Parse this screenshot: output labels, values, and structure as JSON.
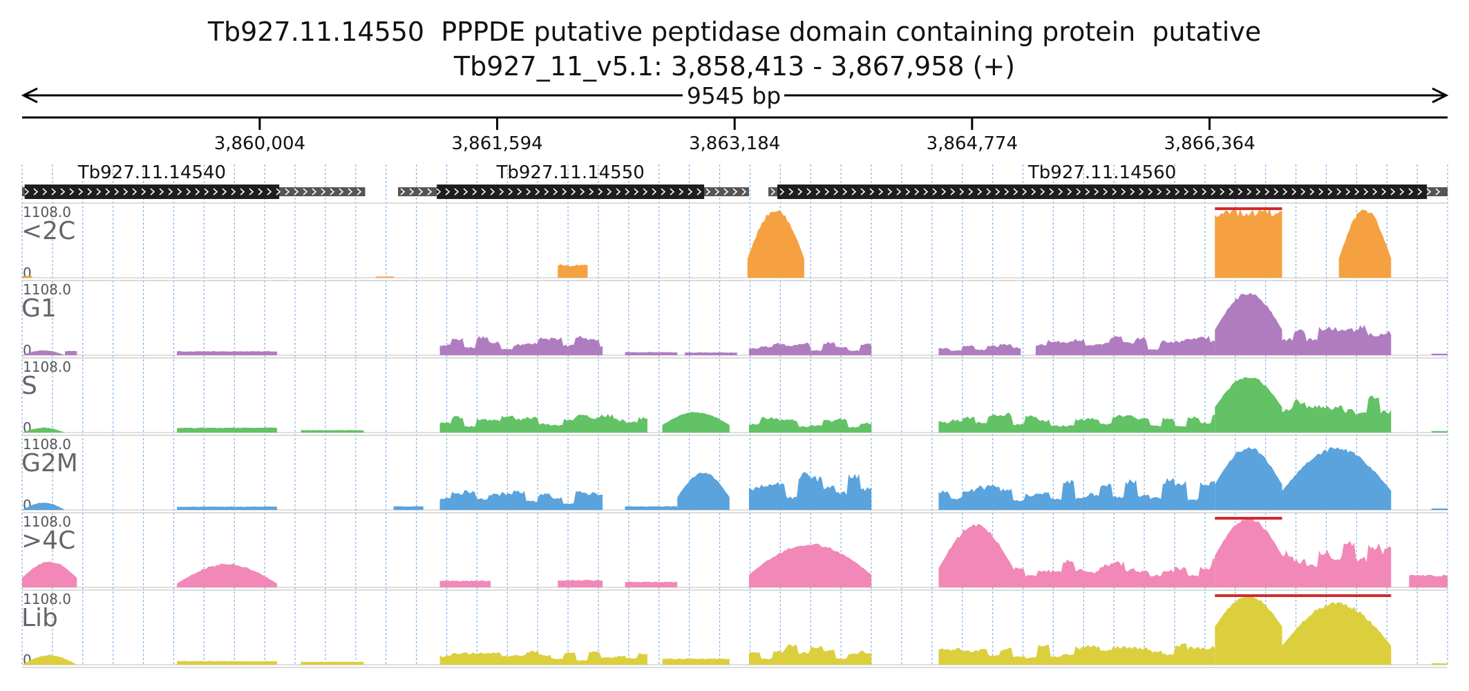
{
  "header": {
    "title": "Tb927.11.14550  PPPDE putative peptidase domain containing protein  putative",
    "location": "Tb927_11_v5.1: 3,858,413 - 3,867,958 (+)"
  },
  "span": {
    "label": "9545 bp",
    "start": 3858413,
    "end": 3867958
  },
  "ruler": {
    "ticks": [
      {
        "value": 3860004,
        "label": "3,860,004"
      },
      {
        "value": 3861594,
        "label": "3,861,594"
      },
      {
        "value": 3863184,
        "label": "3,863,184"
      },
      {
        "value": 3864774,
        "label": "3,864,774"
      },
      {
        "value": 3866364,
        "label": "3,866,364"
      }
    ]
  },
  "genes": [
    {
      "name": "Tb927.11.14540",
      "utr_start": 3858413,
      "cds_start": 3858430,
      "cds_end": 3860135,
      "utr_end": 3860710
    },
    {
      "name": "Tb927.11.14550",
      "utr_start": 3860930,
      "cds_start": 3861190,
      "cds_end": 3862980,
      "utr_end": 3863280
    },
    {
      "name": "Tb927.11.14560",
      "utr_start": 3863410,
      "cds_start": 3863470,
      "cds_end": 3867820,
      "utr_end": 3867958
    }
  ],
  "colors": {
    "<2C": "#f5a142",
    "G1": "#b07cc0",
    "S": "#62c265",
    "G2M": "#5aa3dd",
    ">4C": "#f188b8",
    "Lib": "#dccf3e",
    "clip": "#d42a2a",
    "gene": "#1e1e1e",
    "utr": "#555555",
    "grid": "#7fb2e5"
  },
  "tracks": [
    {
      "name": "<2C",
      "max_label": "1108.0",
      "min_label": "0",
      "max": 1108
    },
    {
      "name": "G1",
      "max_label": "1108.0",
      "min_label": "0",
      "max": 1108
    },
    {
      "name": "S",
      "max_label": "1108.0",
      "min_label": "0",
      "max": 1108
    },
    {
      "name": "G2M",
      "max_label": "1108.0",
      "min_label": "0",
      "max": 1108
    },
    {
      "name": ">4C",
      "max_label": "1108.0",
      "min_label": "0",
      "max": 1108
    },
    {
      "name": "Lib",
      "max_label": "1108.0",
      "min_label": "0",
      "max": 1108
    }
  ],
  "chart_data": {
    "type": "area",
    "x_unit": "bp",
    "y_range": [
      0,
      1108
    ],
    "series": [
      {
        "name": "<2C",
        "segments": [
          {
            "start": 3858413,
            "end": 3858480,
            "shape": "flat",
            "level": 30
          },
          {
            "start": 3860780,
            "end": 3860900,
            "shape": "flat",
            "level": 20
          },
          {
            "start": 3862000,
            "end": 3862200,
            "shape": "flat",
            "level": 210
          },
          {
            "start": 3863270,
            "end": 3863650,
            "shape": "hump",
            "level": 1108,
            "base": 300
          },
          {
            "start": 3866400,
            "end": 3866850,
            "shape": "flat",
            "level": 1108,
            "clipped": true
          },
          {
            "start": 3867230,
            "end": 3867580,
            "shape": "hump",
            "level": 1108,
            "base": 300
          }
        ]
      },
      {
        "name": "G1",
        "segments": [
          {
            "start": 3858413,
            "end": 3858700,
            "shape": "hump",
            "level": 80
          },
          {
            "start": 3858700,
            "end": 3858780,
            "shape": "flat",
            "level": 70
          },
          {
            "start": 3859450,
            "end": 3860120,
            "shape": "flat",
            "level": 65
          },
          {
            "start": 3861210,
            "end": 3862300,
            "shape": "noisy",
            "level": 330
          },
          {
            "start": 3862450,
            "end": 3862800,
            "shape": "flat",
            "level": 50
          },
          {
            "start": 3862850,
            "end": 3863200,
            "shape": "flat",
            "level": 45
          },
          {
            "start": 3863280,
            "end": 3864100,
            "shape": "noisy",
            "level": 230
          },
          {
            "start": 3864550,
            "end": 3865100,
            "shape": "noisy",
            "level": 220
          },
          {
            "start": 3865200,
            "end": 3866400,
            "shape": "noisy",
            "level": 320
          },
          {
            "start": 3866400,
            "end": 3866850,
            "shape": "hump",
            "level": 1000,
            "base": 400
          },
          {
            "start": 3866850,
            "end": 3867580,
            "shape": "noisy",
            "level": 500
          },
          {
            "start": 3867850,
            "end": 3867958,
            "shape": "flat",
            "level": 25
          }
        ]
      },
      {
        "name": "S",
        "segments": [
          {
            "start": 3858413,
            "end": 3858700,
            "shape": "hump",
            "level": 80
          },
          {
            "start": 3859450,
            "end": 3860120,
            "shape": "flat",
            "level": 80
          },
          {
            "start": 3860280,
            "end": 3860700,
            "shape": "flat",
            "level": 40
          },
          {
            "start": 3861210,
            "end": 3862600,
            "shape": "noisy",
            "level": 300
          },
          {
            "start": 3862700,
            "end": 3863150,
            "shape": "hump",
            "level": 330,
            "base": 120
          },
          {
            "start": 3863280,
            "end": 3864100,
            "shape": "noisy",
            "level": 260
          },
          {
            "start": 3864550,
            "end": 3866400,
            "shape": "noisy",
            "level": 320
          },
          {
            "start": 3866400,
            "end": 3866850,
            "shape": "hump",
            "level": 900,
            "base": 400
          },
          {
            "start": 3866850,
            "end": 3867580,
            "shape": "noisy",
            "level": 700
          },
          {
            "start": 3867850,
            "end": 3867958,
            "shape": "flat",
            "level": 25
          }
        ]
      },
      {
        "name": "G2M",
        "segments": [
          {
            "start": 3858413,
            "end": 3858700,
            "shape": "hump",
            "level": 120
          },
          {
            "start": 3859450,
            "end": 3860120,
            "shape": "flat",
            "level": 55
          },
          {
            "start": 3860900,
            "end": 3861100,
            "shape": "flat",
            "level": 60
          },
          {
            "start": 3861210,
            "end": 3862300,
            "shape": "noisy",
            "level": 330
          },
          {
            "start": 3862450,
            "end": 3862800,
            "shape": "flat",
            "level": 60
          },
          {
            "start": 3862800,
            "end": 3863150,
            "shape": "hump",
            "level": 600,
            "base": 200
          },
          {
            "start": 3863280,
            "end": 3864100,
            "shape": "noisy",
            "level": 600
          },
          {
            "start": 3864550,
            "end": 3866400,
            "shape": "noisy",
            "level": 520
          },
          {
            "start": 3866400,
            "end": 3866850,
            "shape": "hump",
            "level": 1000,
            "base": 400
          },
          {
            "start": 3866850,
            "end": 3867580,
            "shape": "hump",
            "level": 1000,
            "base": 300
          },
          {
            "start": 3867850,
            "end": 3867958,
            "shape": "flat",
            "level": 25
          }
        ]
      },
      {
        "name": ">4C",
        "segments": [
          {
            "start": 3858413,
            "end": 3858780,
            "shape": "hump",
            "level": 420,
            "base": 150
          },
          {
            "start": 3859450,
            "end": 3860120,
            "shape": "hump",
            "level": 380,
            "base": 60
          },
          {
            "start": 3861210,
            "end": 3861550,
            "shape": "flat",
            "level": 110
          },
          {
            "start": 3862000,
            "end": 3862300,
            "shape": "flat",
            "level": 120
          },
          {
            "start": 3862450,
            "end": 3862800,
            "shape": "flat",
            "level": 90
          },
          {
            "start": 3863280,
            "end": 3864100,
            "shape": "hump",
            "level": 700,
            "base": 200
          },
          {
            "start": 3864550,
            "end": 3865050,
            "shape": "hump",
            "level": 1000,
            "base": 300
          },
          {
            "start": 3865050,
            "end": 3866400,
            "shape": "noisy",
            "level": 500
          },
          {
            "start": 3866400,
            "end": 3866850,
            "shape": "hump",
            "level": 1108,
            "base": 500,
            "clipped": true
          },
          {
            "start": 3866850,
            "end": 3867580,
            "shape": "noisy",
            "level": 900
          },
          {
            "start": 3867700,
            "end": 3867958,
            "shape": "flat",
            "level": 200
          }
        ]
      },
      {
        "name": "Lib",
        "segments": [
          {
            "start": 3858413,
            "end": 3858780,
            "shape": "hump",
            "level": 160
          },
          {
            "start": 3859450,
            "end": 3860120,
            "shape": "flat",
            "level": 60
          },
          {
            "start": 3860280,
            "end": 3860700,
            "shape": "flat",
            "level": 50
          },
          {
            "start": 3861210,
            "end": 3862600,
            "shape": "noisy",
            "level": 230
          },
          {
            "start": 3862700,
            "end": 3863150,
            "shape": "flat",
            "level": 100
          },
          {
            "start": 3863280,
            "end": 3864100,
            "shape": "noisy",
            "level": 340
          },
          {
            "start": 3864550,
            "end": 3866400,
            "shape": "noisy",
            "level": 380
          },
          {
            "start": 3866400,
            "end": 3866850,
            "shape": "hump",
            "level": 1108,
            "base": 600,
            "clipped": true
          },
          {
            "start": 3866850,
            "end": 3867580,
            "shape": "hump",
            "level": 1000,
            "base": 300,
            "clipped": true
          },
          {
            "start": 3867850,
            "end": 3867958,
            "shape": "flat",
            "level": 25
          }
        ]
      }
    ]
  }
}
